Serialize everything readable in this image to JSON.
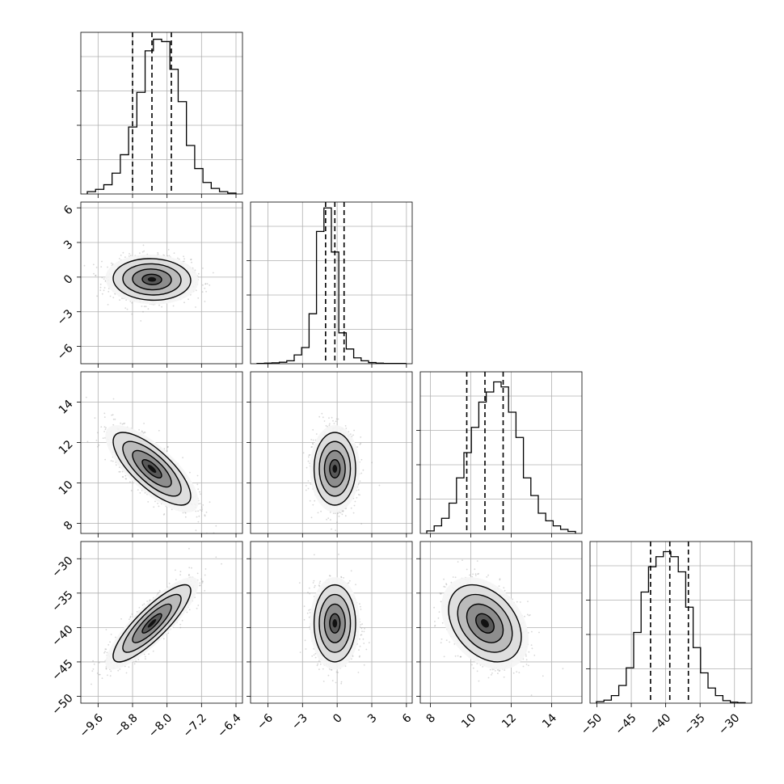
{
  "chart_data": {
    "type": "corner",
    "parameters": [
      {
        "range": [
          -10.0,
          -6.25
        ],
        "ticks": [
          -9.6,
          -8.8,
          -8.0,
          -7.2,
          -6.4
        ],
        "tick_labels": [
          "−9.6",
          "−8.8",
          "−8.0",
          "−7.2",
          "−6.4"
        ],
        "quantiles": [
          -8.8,
          -8.35,
          -7.9
        ],
        "hist": [
          0.5,
          1,
          2,
          4.5,
          8.5,
          14.5,
          22,
          31,
          33.5,
          33,
          27,
          20,
          10.5,
          5.5,
          2.5,
          1.2,
          0.5,
          0.2
        ],
        "hist_max": 35
      },
      {
        "range": [
          -7.5,
          6.5
        ],
        "ticks": [
          -6,
          -3,
          0,
          3,
          6
        ],
        "tick_labels": [
          "−6",
          "−3",
          "0",
          "3",
          "6"
        ],
        "quantiles": [
          -1.0,
          -0.2,
          0.6
        ],
        "hist": [
          0.1,
          0.2,
          0.3,
          0.5,
          1.0,
          3.0,
          5.5,
          17,
          45,
          53,
          38,
          10.5,
          5.0,
          2.0,
          1.0,
          0.4,
          0.2,
          0.1,
          0.1,
          0.1
        ],
        "hist_max": 55
      },
      {
        "range": [
          7.5,
          15.5
        ],
        "ticks": [
          8,
          10,
          12,
          14
        ],
        "tick_labels": [
          "8",
          "10",
          "12",
          "14"
        ],
        "quantiles": [
          9.8,
          10.7,
          11.6
        ],
        "hist": [
          0.5,
          1.5,
          3,
          6,
          11,
          16,
          21,
          26,
          28,
          30,
          29,
          24,
          19,
          11,
          7.5,
          4,
          2.5,
          1.5,
          0.8,
          0.4
        ],
        "hist_max": 32
      },
      {
        "range": [
          -51.0,
          -27.5
        ],
        "ticks": [
          -50,
          -45,
          -40,
          -35,
          -30
        ],
        "tick_labels": [
          "−50",
          "−45",
          "−40",
          "−35",
          "−30"
        ],
        "quantiles": [
          -42.2,
          -39.4,
          -36.7
        ],
        "hist": [
          0.3,
          0.6,
          1.5,
          3.5,
          7,
          14,
          22,
          27,
          29,
          30,
          29,
          26,
          19,
          11,
          6,
          3,
          1.5,
          0.5,
          0.2,
          0.1
        ],
        "hist_max": 32
      }
    ],
    "pairs": [
      {
        "row": 1,
        "col": 0,
        "center": [
          -8.35,
          -0.2
        ],
        "sd": [
          0.45,
          0.9
        ],
        "rho": -0.05
      },
      {
        "row": 2,
        "col": 0,
        "center": [
          -8.35,
          10.7
        ],
        "sd": [
          0.45,
          0.9
        ],
        "rho": -0.75
      },
      {
        "row": 2,
        "col": 1,
        "center": [
          -0.2,
          10.7
        ],
        "sd": [
          0.9,
          0.9
        ],
        "rho": 0.0
      },
      {
        "row": 3,
        "col": 0,
        "center": [
          -8.35,
          -39.4
        ],
        "sd": [
          0.45,
          2.8
        ],
        "rho": 0.85
      },
      {
        "row": 3,
        "col": 1,
        "center": [
          -0.2,
          -39.4
        ],
        "sd": [
          0.9,
          2.8
        ],
        "rho": 0.0
      },
      {
        "row": 3,
        "col": 2,
        "center": [
          10.7,
          -39.4
        ],
        "sd": [
          0.9,
          2.8
        ],
        "rho": -0.35
      }
    ],
    "contour_levels_sigma": [
      0.5,
      1.0,
      1.5,
      2.0
    ],
    "grid": true,
    "title": "",
    "xlabel": "",
    "ylabel": ""
  }
}
